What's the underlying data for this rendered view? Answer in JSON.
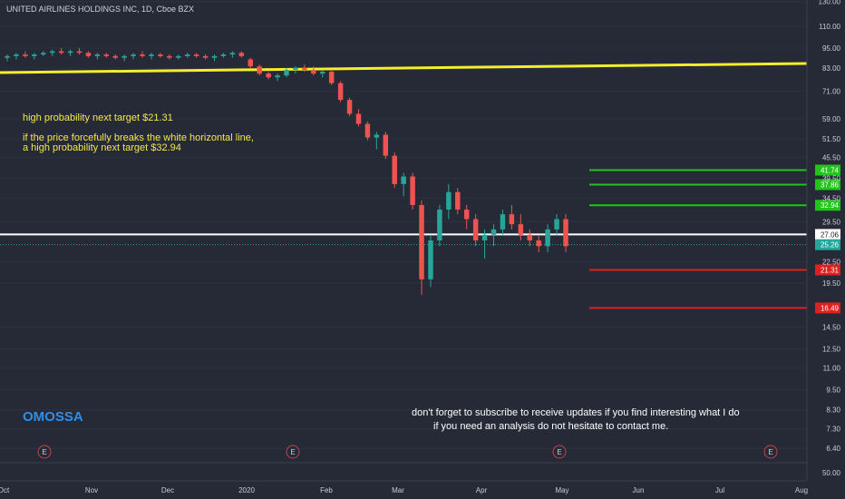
{
  "chart_data": {
    "type": "candlestick",
    "title": "UNITED AIRLINES HOLDINGS INC, 1D, Cboe BZX",
    "y_scale": "log",
    "y_ticks": [
      "130.00",
      "110.00",
      "95.00",
      "83.00",
      "71.00",
      "59.00",
      "51.50",
      "45.50",
      "39.50",
      "34.50",
      "29.50",
      "22.50",
      "19.50",
      "14.50",
      "12.50",
      "11.00",
      "9.50",
      "8.30",
      "7.30",
      "6.40"
    ],
    "x_ticks": [
      "Oct",
      "Nov",
      "Dec",
      "2020",
      "Feb",
      "Mar",
      "Apr",
      "May",
      "Jun",
      "Jul",
      "Aug"
    ],
    "volume_label": "50.00",
    "horizontal_lines": [
      {
        "price": "41.74",
        "color": "#22c41c"
      },
      {
        "price": "37.86",
        "color": "#22c41c"
      },
      {
        "price": "32.94",
        "color": "#22c41c"
      },
      {
        "price": "27.06",
        "color": "#ffffff"
      },
      {
        "price": "21.31",
        "color": "#e01f1f"
      },
      {
        "price": "16.49",
        "color": "#e01f1f"
      }
    ],
    "last_price": {
      "label": "25.26",
      "color": "#26a69a"
    },
    "trend_line_color": "#f5ee2a",
    "earnings_markers": [
      "E",
      "E",
      "E",
      "E"
    ],
    "candles": [
      [
        89,
        91,
        87,
        90
      ],
      [
        90,
        92,
        88,
        91
      ],
      [
        91,
        93,
        89,
        90
      ],
      [
        90,
        92,
        88,
        91
      ],
      [
        91,
        93,
        90,
        92
      ],
      [
        92,
        94,
        90,
        93
      ],
      [
        93,
        95,
        91,
        92
      ],
      [
        92,
        94,
        90,
        93
      ],
      [
        93,
        95,
        91,
        92
      ],
      [
        92,
        93,
        89,
        90
      ],
      [
        90,
        92,
        88,
        91
      ],
      [
        91,
        92,
        89,
        90
      ],
      [
        90,
        91,
        88,
        89
      ],
      [
        89,
        91,
        87,
        90
      ],
      [
        90,
        92,
        88,
        91
      ],
      [
        91,
        93,
        89,
        90
      ],
      [
        90,
        92,
        88,
        91
      ],
      [
        91,
        92,
        89,
        90
      ],
      [
        90,
        91,
        88,
        89
      ],
      [
        89,
        91,
        88,
        90
      ],
      [
        90,
        92,
        89,
        91
      ],
      [
        91,
        92,
        89,
        90
      ],
      [
        90,
        91,
        88,
        89
      ],
      [
        89,
        91,
        87,
        90
      ],
      [
        90,
        92,
        89,
        91
      ],
      [
        91,
        93,
        89,
        92
      ],
      [
        92,
        93,
        89,
        90
      ],
      [
        88,
        89,
        83,
        84
      ],
      [
        84,
        85,
        79,
        80
      ],
      [
        80,
        81,
        77,
        78
      ],
      [
        78,
        80,
        76,
        79
      ],
      [
        79,
        83,
        78,
        82
      ],
      [
        82,
        84,
        80,
        83
      ],
      [
        83,
        85,
        81,
        82
      ],
      [
        82,
        84,
        79,
        80
      ],
      [
        80,
        82,
        78,
        81
      ],
      [
        81,
        82,
        74,
        75
      ],
      [
        75,
        76,
        66,
        67
      ],
      [
        67,
        68,
        60,
        61
      ],
      [
        61,
        63,
        56,
        57
      ],
      [
        57,
        58,
        51,
        52
      ],
      [
        52,
        54,
        48,
        53
      ],
      [
        53,
        54,
        45,
        46
      ],
      [
        46,
        47,
        37,
        38
      ],
      [
        38,
        41,
        35,
        40
      ],
      [
        40,
        41,
        32,
        33
      ],
      [
        33,
        34,
        18,
        20
      ],
      [
        20,
        27,
        19,
        26
      ],
      [
        26,
        33,
        25,
        32
      ],
      [
        32,
        38,
        30,
        36
      ],
      [
        36,
        37,
        31,
        32
      ],
      [
        32,
        33,
        28,
        30
      ],
      [
        30,
        31,
        25,
        26
      ],
      [
        26,
        28,
        23,
        27
      ],
      [
        27,
        29,
        25,
        28
      ],
      [
        28,
        32,
        27,
        31
      ],
      [
        31,
        33,
        28,
        29
      ],
      [
        29,
        31,
        26,
        27
      ],
      [
        27,
        28,
        25,
        26
      ],
      [
        26,
        27,
        24,
        25
      ],
      [
        25,
        29,
        24,
        28
      ],
      [
        28,
        31,
        27,
        30
      ],
      [
        30,
        31,
        24,
        25
      ]
    ]
  },
  "annotations": {
    "target_text": "high probability next target $21.31",
    "breakout_line1": "if the price forcefully breaks the white horizontal line,",
    "breakout_line2": "a high probability next target $32.94"
  },
  "branding": "OMOSSA",
  "footer": {
    "line1": "don't forget to subscribe to receive updates if you find interesting what I do",
    "line2": "if you need an analysis do not hesitate to contact me."
  },
  "colors": {
    "up": "#26a69a",
    "down": "#ef5350",
    "background": "#262a36"
  }
}
